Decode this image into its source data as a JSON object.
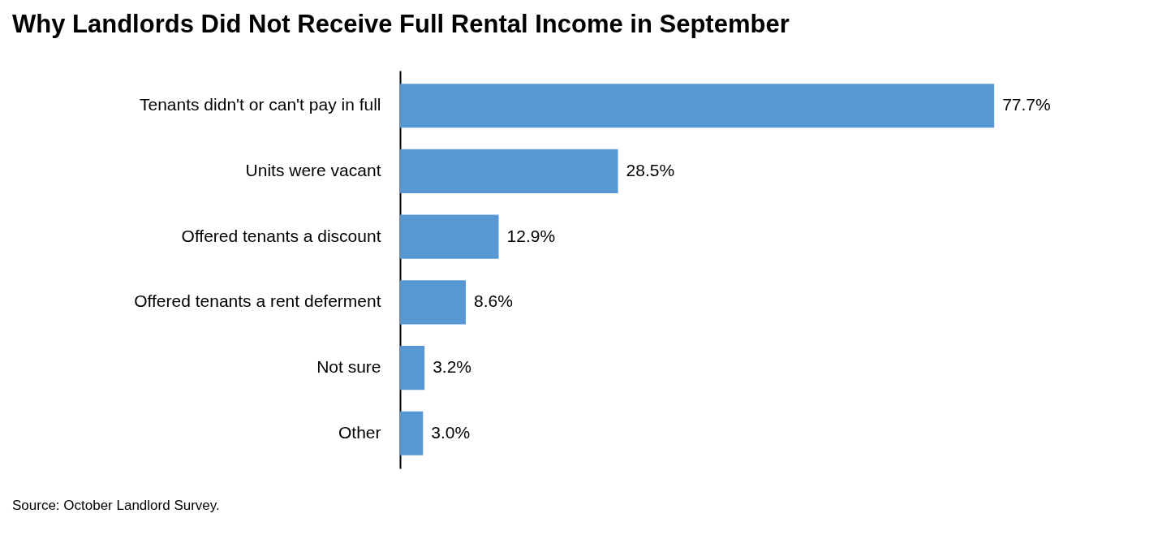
{
  "chart_data": {
    "type": "bar",
    "orientation": "horizontal",
    "title": "Why Landlords Did Not Receive Full Rental Income in September",
    "categories": [
      "Tenants didn't or can't pay in full",
      "Units were vacant",
      "Offered tenants a discount",
      "Offered tenants a rent deferment",
      "Not sure",
      "Other"
    ],
    "values": [
      77.7,
      28.5,
      12.9,
      8.6,
      3.2,
      3.0
    ],
    "value_labels": [
      "77.7%",
      "28.5%",
      "12.9%",
      "8.6%",
      "3.2%",
      "3.0%"
    ],
    "color": "#5797d3",
    "annotations": [
      "Source: October Landlord Survey."
    ]
  }
}
